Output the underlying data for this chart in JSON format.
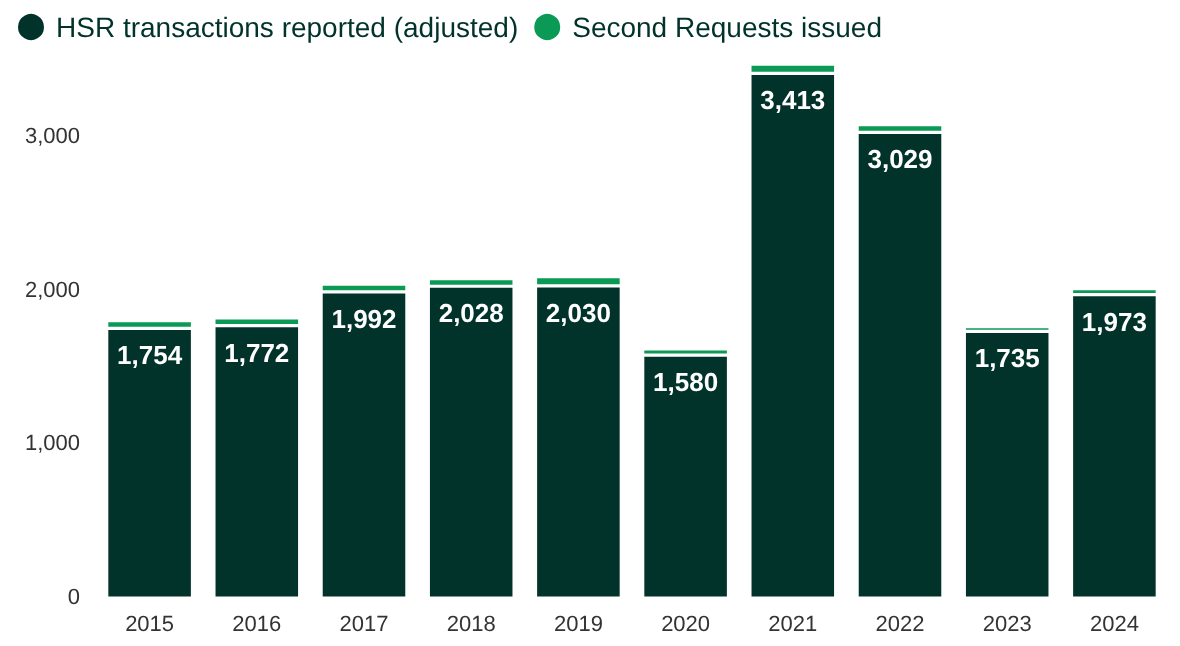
{
  "chart_data": {
    "type": "bar",
    "stacked": true,
    "categories": [
      "2015",
      "2016",
      "2017",
      "2018",
      "2019",
      "2020",
      "2021",
      "2022",
      "2023",
      "2024"
    ],
    "series": [
      {
        "name": "HSR transactions reported (adjusted)",
        "color": "#02332a",
        "values": [
          1754,
          1772,
          1992,
          2028,
          2030,
          1580,
          3413,
          3029,
          1735,
          1973
        ],
        "value_labels": [
          "1,754",
          "1,772",
          "1,992",
          "2,028",
          "2,030",
          "1,580",
          "3,413",
          "3,029",
          "1,735",
          "1,973"
        ]
      },
      {
        "name": "Second Requests issued",
        "color": "#0a9a55",
        "values": [
          50,
          50,
          50,
          50,
          60,
          40,
          60,
          50,
          30,
          40
        ]
      }
    ],
    "ylim": [
      0,
      3500
    ],
    "yticks": [
      0,
      {
        "value": 1000,
        "label": "1,000"
      },
      {
        "value": 2000,
        "label": "2,000"
      },
      {
        "value": 3000,
        "label": "3,000"
      }
    ],
    "grid": false,
    "legend": "top left"
  }
}
